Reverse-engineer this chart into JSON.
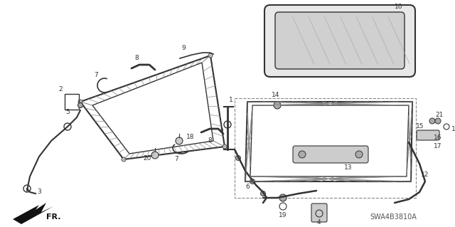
{
  "background_color": "#ffffff",
  "fig_width": 6.4,
  "fig_height": 3.19,
  "dpi": 100,
  "watermark": "SWA4B3810A",
  "line_color": "#333333",
  "light_line": "#888888"
}
